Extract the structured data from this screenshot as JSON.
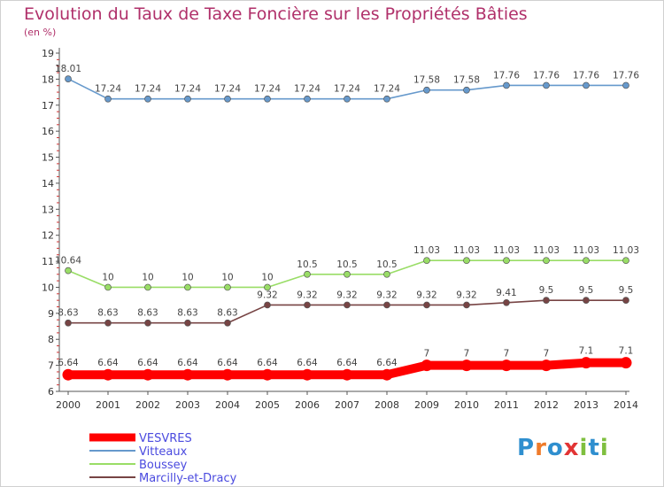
{
  "chart_data": {
    "type": "line",
    "title": "Evolution du Taux de Taxe Foncière sur les Propriétés Bâties",
    "subtitle": "(en %)",
    "xlabel": "",
    "ylabel": "",
    "categories": [
      "2000",
      "2001",
      "2002",
      "2003",
      "2004",
      "2005",
      "2006",
      "2007",
      "2008",
      "2009",
      "2010",
      "2011",
      "2012",
      "2013",
      "2014"
    ],
    "y_ticks": [
      "6",
      "7",
      "8",
      "9",
      "10",
      "11",
      "12",
      "13",
      "14",
      "15",
      "16",
      "17",
      "18",
      "19"
    ],
    "ylim": [
      6,
      19
    ],
    "grid": false,
    "legend_position": "bottom-left",
    "series": [
      {
        "name": "VESVRES",
        "color": "#ff0000",
        "values": [
          6.64,
          6.64,
          6.64,
          6.64,
          6.64,
          6.64,
          6.64,
          6.64,
          6.64,
          7,
          7,
          7,
          7,
          7.1,
          7.1
        ],
        "labels": [
          "6.64",
          "6.64",
          "6.64",
          "6.64",
          "6.64",
          "6.64",
          "6.64",
          "6.64",
          "6.64",
          "7",
          "7",
          "7",
          "7",
          "7.1",
          "7.1"
        ]
      },
      {
        "name": "Vitteaux",
        "color": "#6699cc",
        "values": [
          18.01,
          17.24,
          17.24,
          17.24,
          17.24,
          17.24,
          17.24,
          17.24,
          17.24,
          17.58,
          17.58,
          17.76,
          17.76,
          17.76,
          17.76
        ],
        "labels": [
          "18.01",
          "17.24",
          "17.24",
          "17.24",
          "17.24",
          "17.24",
          "17.24",
          "17.24",
          "17.24",
          "17.58",
          "17.58",
          "17.76",
          "17.76",
          "17.76",
          "17.76"
        ]
      },
      {
        "name": "Boussey",
        "color": "#99dd66",
        "values": [
          10.64,
          10,
          10,
          10,
          10,
          10,
          10.5,
          10.5,
          10.5,
          11.03,
          11.03,
          11.03,
          11.03,
          11.03,
          11.03
        ],
        "labels": [
          "10.64",
          "10",
          "10",
          "10",
          "10",
          "10",
          "10.5",
          "10.5",
          "10.5",
          "11.03",
          "11.03",
          "11.03",
          "11.03",
          "11.03",
          "11.03"
        ]
      },
      {
        "name": "Marcilly-et-Dracy",
        "color": "#774444",
        "values": [
          8.63,
          8.63,
          8.63,
          8.63,
          8.63,
          9.32,
          9.32,
          9.32,
          9.32,
          9.32,
          9.32,
          9.41,
          9.5,
          9.5,
          9.5
        ],
        "labels": [
          "8.63",
          "8.63",
          "8.63",
          "8.63",
          "8.63",
          "9.32",
          "9.32",
          "9.32",
          "9.32",
          "9.32",
          "9.32",
          "9.41",
          "9.5",
          "9.5",
          "9.5"
        ]
      }
    ]
  },
  "legend": {
    "items": [
      {
        "label": "VESVRES",
        "color": "#ff0000"
      },
      {
        "label": "Vitteaux",
        "color": "#6699cc"
      },
      {
        "label": "Boussey",
        "color": "#99dd66"
      },
      {
        "label": "Marcilly-et-Dracy",
        "color": "#774444"
      }
    ],
    "text_color": "#4a4adf"
  },
  "logo": {
    "text": "Proxiti",
    "letters": [
      "P",
      "r",
      "o",
      "x",
      "i",
      "t",
      "i"
    ],
    "colors": [
      "#2f8fcf",
      "#ef7b2a",
      "#2f8fcf",
      "#e23434",
      "#7fbf3f",
      "#2f8fcf",
      "#7fbf3f"
    ]
  }
}
